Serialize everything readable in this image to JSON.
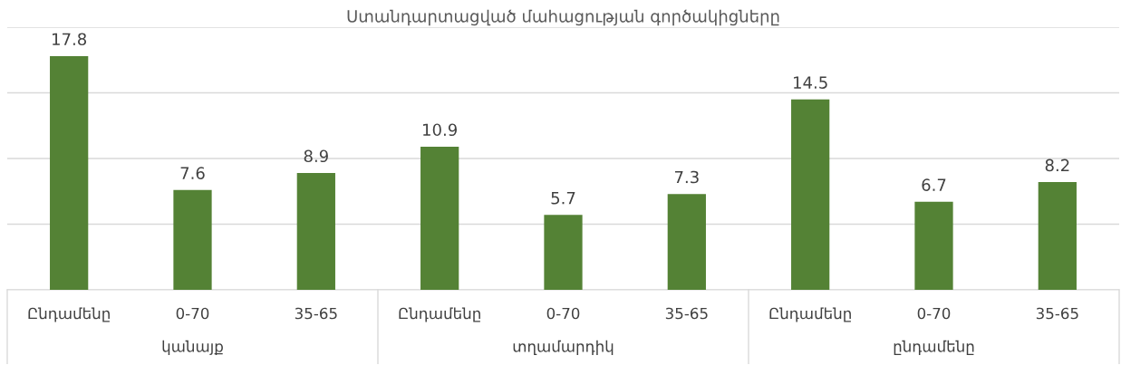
{
  "chart_data": {
    "type": "bar",
    "title": "Ստանդարտացված մահացության գործակիցները",
    "categories": [
      "Ընդամենը",
      "0-70",
      "35-65",
      "Ընդամենը",
      "0-70",
      "35-65",
      "Ընդամենը",
      "0-70",
      "35-65"
    ],
    "values": [
      17.8,
      7.6,
      8.9,
      10.9,
      5.7,
      7.3,
      14.5,
      6.7,
      8.2
    ],
    "color": "#548235",
    "ylim": [
      0,
      20
    ],
    "yticks": [
      {
        "value": 0,
        "label": null
      },
      {
        "value": 5,
        "label": null
      },
      {
        "value": 10,
        "label": null
      },
      {
        "value": 15,
        "label": null
      },
      {
        "value": 20,
        "label": null
      }
    ],
    "grid": "y",
    "data_labels": true,
    "tick_labels": "x",
    "annotations": [
      "կանայք",
      "տղամարդիկ",
      "ընդամենը"
    ]
  }
}
